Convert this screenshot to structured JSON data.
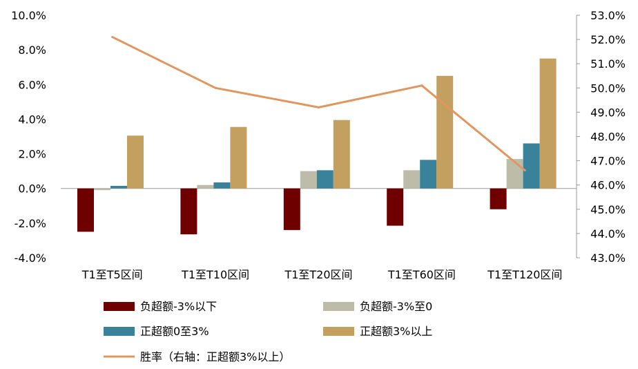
{
  "chart_data": {
    "type": "bar",
    "categories": [
      "T1至T5区间",
      "T1至T10区间",
      "T1至T20区间",
      "T1至T60区间",
      "T1至T120区间"
    ],
    "series": [
      {
        "name": "负超额-3%以下",
        "type": "bar",
        "axis": "left",
        "color": "#6E0000",
        "values": [
          -2.5,
          -2.65,
          -2.4,
          -2.15,
          -1.2
        ]
      },
      {
        "name": "负超额-3%至0",
        "type": "bar",
        "axis": "left",
        "color": "#BDBCA8",
        "values": [
          -0.1,
          0.2,
          1.0,
          1.05,
          1.7
        ]
      },
      {
        "name": "正超额0至3%",
        "type": "bar",
        "axis": "left",
        "color": "#3A8299",
        "values": [
          0.15,
          0.35,
          1.05,
          1.65,
          2.6
        ]
      },
      {
        "name": "正超额3%以上",
        "type": "bar",
        "axis": "left",
        "color": "#C4A060",
        "values": [
          3.05,
          3.55,
          3.95,
          6.5,
          7.5
        ]
      },
      {
        "name": "胜率（右轴：正超额3%以上）",
        "type": "line",
        "axis": "right",
        "color": "#E0965E",
        "values": [
          52.1,
          50.0,
          49.2,
          50.1,
          46.6
        ]
      }
    ],
    "y_left": {
      "min": -4.0,
      "max": 10.0,
      "step": 2.0,
      "ticks": [
        "-4.0%",
        "-2.0%",
        "0.0%",
        "2.0%",
        "4.0%",
        "6.0%",
        "8.0%",
        "10.0%"
      ]
    },
    "y_right": {
      "min": 43.0,
      "max": 53.0,
      "step": 1.0,
      "ticks": [
        "43.0%",
        "44.0%",
        "45.0%",
        "46.0%",
        "47.0%",
        "48.0%",
        "49.0%",
        "50.0%",
        "51.0%",
        "52.0%",
        "53.0%"
      ]
    },
    "legend": {
      "placement": "bottom"
    },
    "grid": false
  }
}
